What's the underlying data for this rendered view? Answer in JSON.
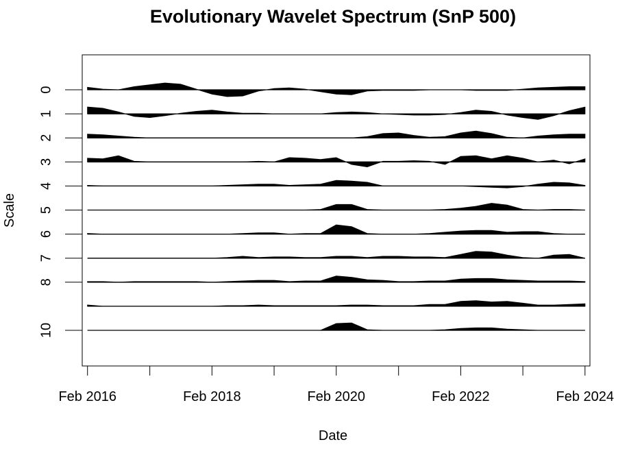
{
  "chart_data": {
    "type": "area",
    "title": "Evolutionary Wavelet Spectrum (SnP 500)",
    "xlabel": "Date",
    "ylabel": "Scale",
    "x_range": [
      "2016-01-01",
      "2024-03-01"
    ],
    "y_ticks": [
      "0",
      "1",
      "2",
      "3",
      "4",
      "5",
      "6",
      "7",
      "8",
      "10"
    ],
    "x_ticks": [
      {
        "date": "2016-02-01",
        "label": "Feb 2016"
      },
      {
        "date": "2017-02-01",
        "label": ""
      },
      {
        "date": "2018-02-01",
        "label": "Feb 2018"
      },
      {
        "date": "2019-02-01",
        "label": ""
      },
      {
        "date": "2020-02-01",
        "label": "Feb 2020"
      },
      {
        "date": "2021-02-01",
        "label": ""
      },
      {
        "date": "2022-02-01",
        "label": "Feb 2022"
      },
      {
        "date": "2023-02-01",
        "label": ""
      },
      {
        "date": "2024-02-01",
        "label": "Feb 2024"
      }
    ],
    "series_x": [
      "2016-02-01",
      "2016-05-01",
      "2016-08-01",
      "2016-11-01",
      "2017-02-01",
      "2017-05-01",
      "2017-08-01",
      "2017-11-01",
      "2018-02-01",
      "2018-05-01",
      "2018-08-01",
      "2018-11-01",
      "2019-02-01",
      "2019-05-01",
      "2019-08-01",
      "2019-11-01",
      "2020-02-01",
      "2020-05-01",
      "2020-08-01",
      "2020-11-01",
      "2021-02-01",
      "2021-05-01",
      "2021-08-01",
      "2021-11-01",
      "2022-02-01",
      "2022-05-01",
      "2022-08-01",
      "2022-11-01",
      "2023-02-01",
      "2023-05-01",
      "2023-08-01",
      "2023-11-01",
      "2024-02-01"
    ],
    "series": [
      {
        "scale": 0,
        "values": [
          0.2,
          0.05,
          0.0,
          0.25,
          0.4,
          0.55,
          0.45,
          0.05,
          -0.35,
          -0.55,
          -0.5,
          -0.1,
          0.1,
          0.15,
          0.05,
          -0.15,
          -0.35,
          -0.4,
          -0.1,
          -0.05,
          -0.05,
          -0.05,
          0.0,
          0.0,
          0.0,
          -0.05,
          -0.05,
          -0.05,
          0.05,
          0.15,
          0.2,
          0.25,
          0.25
        ]
      },
      {
        "scale": 1,
        "values": [
          0.55,
          0.45,
          0.15,
          -0.2,
          -0.3,
          -0.15,
          0.05,
          0.2,
          0.3,
          0.15,
          0.05,
          0.05,
          0.0,
          0.0,
          0.0,
          0.0,
          0.1,
          0.15,
          0.1,
          0.0,
          -0.05,
          -0.1,
          -0.1,
          -0.05,
          0.1,
          0.3,
          0.2,
          -0.1,
          -0.3,
          -0.45,
          -0.15,
          0.25,
          0.55
        ]
      },
      {
        "scale": 2,
        "values": [
          0.3,
          0.25,
          0.15,
          0.05,
          0.0,
          0.0,
          0.0,
          0.0,
          0.0,
          0.0,
          0.0,
          0.0,
          0.0,
          0.0,
          0.0,
          0.0,
          0.0,
          0.0,
          0.1,
          0.35,
          0.4,
          0.2,
          0.05,
          0.1,
          0.4,
          0.55,
          0.35,
          0.05,
          0.0,
          0.15,
          0.25,
          0.3,
          0.3
        ]
      },
      {
        "scale": 3,
        "values": [
          0.3,
          0.25,
          0.5,
          0.05,
          0.0,
          0.0,
          0.0,
          0.0,
          0.0,
          0.0,
          0.0,
          0.05,
          0.0,
          0.35,
          0.3,
          0.2,
          0.35,
          -0.2,
          -0.4,
          0.05,
          0.05,
          0.1,
          0.05,
          -0.2,
          0.45,
          0.5,
          0.25,
          0.5,
          0.3,
          0.0,
          0.15,
          -0.15,
          0.25
        ]
      },
      {
        "scale": 4,
        "values": [
          0.05,
          0.0,
          0.0,
          0.0,
          0.0,
          0.0,
          0.0,
          0.0,
          0.0,
          0.05,
          0.1,
          0.15,
          0.15,
          0.05,
          0.1,
          0.15,
          0.45,
          0.4,
          0.3,
          0.0,
          0.0,
          0.0,
          0.0,
          0.0,
          0.0,
          -0.05,
          -0.1,
          -0.15,
          -0.05,
          0.15,
          0.3,
          0.25,
          0.05
        ]
      },
      {
        "scale": 5,
        "values": [
          0.0,
          0.0,
          0.0,
          0.0,
          0.0,
          0.0,
          0.0,
          0.0,
          0.0,
          0.0,
          0.0,
          0.0,
          0.0,
          0.0,
          0.0,
          0.05,
          0.45,
          0.45,
          0.05,
          0.0,
          0.0,
          0.0,
          0.0,
          0.05,
          0.15,
          0.3,
          0.55,
          0.4,
          0.05,
          0.0,
          0.05,
          0.05,
          0.0
        ]
      },
      {
        "scale": 6,
        "values": [
          0.05,
          0.0,
          0.0,
          0.0,
          0.0,
          0.0,
          0.0,
          0.0,
          0.0,
          0.0,
          0.05,
          0.1,
          0.1,
          0.0,
          0.05,
          0.05,
          0.75,
          0.6,
          0.05,
          0.0,
          0.0,
          0.0,
          0.05,
          0.15,
          0.25,
          0.3,
          0.3,
          0.15,
          0.2,
          0.2,
          0.05,
          0.0,
          0.0
        ]
      },
      {
        "scale": 7,
        "values": [
          0.0,
          0.0,
          0.0,
          0.0,
          0.0,
          0.0,
          0.0,
          0.0,
          0.0,
          0.05,
          0.15,
          0.05,
          0.1,
          0.1,
          0.05,
          0.05,
          0.15,
          0.15,
          0.05,
          0.15,
          0.15,
          0.1,
          0.1,
          0.05,
          0.3,
          0.55,
          0.5,
          0.25,
          0.05,
          0.0,
          0.25,
          0.3,
          0.0
        ]
      },
      {
        "scale": 8,
        "values": [
          0.05,
          0.05,
          0.0,
          0.05,
          0.05,
          0.05,
          0.05,
          0.05,
          0.0,
          0.05,
          0.1,
          0.15,
          0.15,
          0.05,
          0.1,
          0.1,
          0.5,
          0.4,
          0.2,
          0.15,
          0.05,
          0.05,
          0.1,
          0.1,
          0.25,
          0.3,
          0.3,
          0.2,
          0.15,
          0.1,
          0.1,
          0.1,
          0.05
        ]
      },
      {
        "scale": 9,
        "values": [
          0.1,
          0.0,
          0.0,
          0.0,
          0.0,
          0.0,
          0.0,
          0.0,
          0.0,
          0.05,
          0.05,
          0.1,
          0.05,
          0.05,
          0.05,
          0.05,
          0.05,
          0.1,
          0.1,
          0.05,
          0.05,
          0.05,
          0.15,
          0.15,
          0.4,
          0.45,
          0.35,
          0.4,
          0.25,
          0.1,
          0.1,
          0.15,
          0.2
        ]
      },
      {
        "scale": 10,
        "values": [
          0.0,
          0.0,
          0.0,
          0.0,
          0.0,
          0.0,
          0.0,
          0.0,
          0.0,
          0.0,
          0.0,
          0.0,
          0.0,
          0.0,
          0.0,
          0.0,
          0.55,
          0.6,
          0.05,
          0.0,
          0.0,
          0.0,
          0.0,
          0.05,
          0.15,
          0.2,
          0.2,
          0.1,
          0.05,
          0.0,
          0.0,
          0.0,
          0.0
        ]
      }
    ],
    "grid": false,
    "legend": "none"
  }
}
